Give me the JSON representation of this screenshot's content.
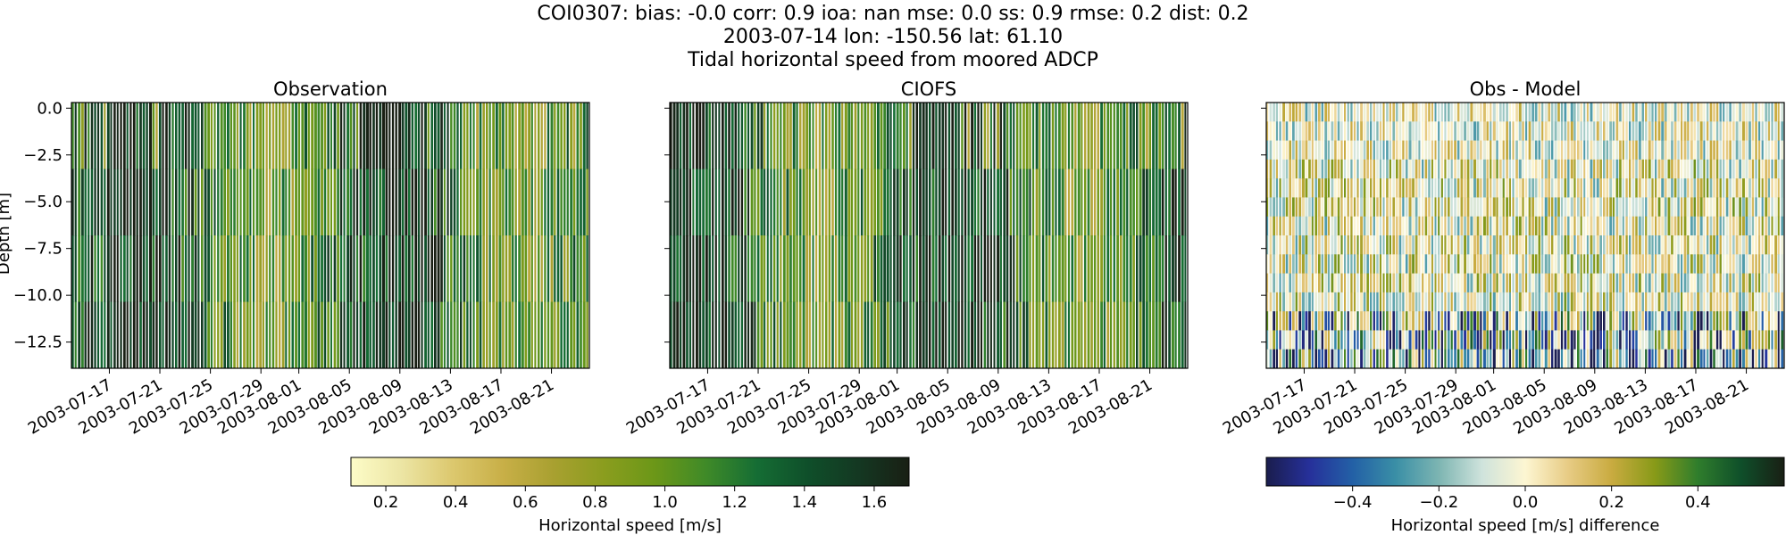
{
  "figure": {
    "title_lines": [
      "COI0307: bias: -0.0  corr: 0.9  ioa: nan  mse: 0.0  ss: 0.9  rmse: 0.2  dist: 0.2",
      "2003-07-14 lon: -150.56 lat: 61.10",
      "Tidal horizontal speed from moored ADCP"
    ],
    "ylabel": "Depth [m]"
  },
  "chart_data": [
    {
      "type": "heatmap",
      "title": "Observation",
      "x_ticks": [
        "2003-07-17",
        "2003-07-21",
        "2003-07-25",
        "2003-07-29",
        "2003-08-01",
        "2003-08-05",
        "2003-08-09",
        "2003-08-13",
        "2003-08-17",
        "2003-08-21"
      ],
      "xlim": [
        "2003-07-14",
        "2003-08-24"
      ],
      "y_ticks": [
        0.0,
        -2.5,
        -5.0,
        -7.5,
        -10.0,
        -12.5
      ],
      "y_tick_labels": [
        "0.0",
        "−2.5",
        "−5.0",
        "−7.5",
        "−10.0",
        "−12.5"
      ],
      "ylim": [
        -13.9,
        0.3
      ],
      "colormap": "speed",
      "vmin": 0.1,
      "vmax": 1.7,
      "value_range": [
        0.1,
        1.7
      ]
    },
    {
      "type": "heatmap",
      "title": "CIOFS",
      "x_ticks": [
        "2003-07-17",
        "2003-07-21",
        "2003-07-25",
        "2003-07-29",
        "2003-08-01",
        "2003-08-05",
        "2003-08-09",
        "2003-08-13",
        "2003-08-17",
        "2003-08-21"
      ],
      "xlim": [
        "2003-07-14",
        "2003-08-24"
      ],
      "ylim": [
        -13.9,
        0.3
      ],
      "colormap": "speed",
      "vmin": 0.1,
      "vmax": 1.7,
      "value_range": [
        0.1,
        1.7
      ]
    },
    {
      "type": "heatmap",
      "title": "Obs - Model",
      "x_ticks": [
        "2003-07-17",
        "2003-07-21",
        "2003-07-25",
        "2003-07-29",
        "2003-08-01",
        "2003-08-05",
        "2003-08-09",
        "2003-08-13",
        "2003-08-17",
        "2003-08-21"
      ],
      "xlim": [
        "2003-07-14",
        "2003-08-24"
      ],
      "ylim": [
        -13.9,
        0.3
      ],
      "colormap": "diff",
      "vmin": -0.6,
      "vmax": 0.6,
      "value_range": [
        -0.6,
        0.6
      ]
    }
  ],
  "colorbars": [
    {
      "label": "Horizontal speed [m/s]",
      "colormap": "speed",
      "range": [
        0.1,
        1.7
      ],
      "ticks": [
        0.2,
        0.4,
        0.6,
        0.8,
        1.0,
        1.2,
        1.4,
        1.6
      ],
      "tick_labels": [
        "0.2",
        "0.4",
        "0.6",
        "0.8",
        "1.0",
        "1.2",
        "1.4",
        "1.6"
      ]
    },
    {
      "label": "Horizontal speed [m/s] difference",
      "colormap": "diff",
      "range": [
        -0.6,
        0.6
      ],
      "ticks": [
        -0.4,
        -0.2,
        0.0,
        0.2,
        0.4
      ],
      "tick_labels": [
        "−0.4",
        "−0.2",
        "0.0",
        "0.2",
        "0.4"
      ]
    }
  ],
  "colormaps": {
    "speed": [
      "#fdfcc8",
      "#ece5a4",
      "#dcc86e",
      "#c8af47",
      "#a8a030",
      "#8a9d1e",
      "#6b9718",
      "#3f8a28",
      "#156d34",
      "#0f4f2a",
      "#143822",
      "#191f14"
    ],
    "diff": [
      "#1a1d4d",
      "#26309a",
      "#2360a6",
      "#3a8fa6",
      "#7db5b2",
      "#cfe3dc",
      "#fdf6d2",
      "#e7cb84",
      "#c9ab40",
      "#889a18",
      "#2f7d2c",
      "#0f4f2a",
      "#191f14"
    ]
  }
}
